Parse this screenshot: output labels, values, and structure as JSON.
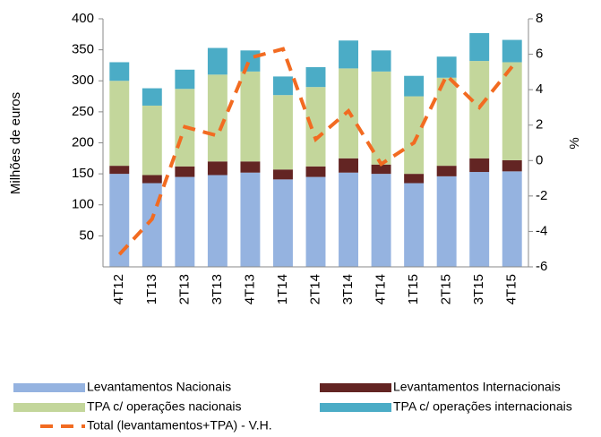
{
  "chart_data": {
    "type": "bar",
    "y_label": "Milhões de euros",
    "y2_label": "%",
    "categories": [
      "4T12",
      "1T13",
      "2T13",
      "3T13",
      "4T13",
      "1T14",
      "2T14",
      "3T14",
      "4T14",
      "1T15",
      "2T15",
      "3T15",
      "4T15"
    ],
    "stacked": true,
    "series": [
      {
        "name": "Levantamentos Nacionais",
        "color": "#95b3e0",
        "values": [
          150,
          135,
          145,
          148,
          152,
          141,
          145,
          152,
          150,
          135,
          146,
          153,
          154
        ]
      },
      {
        "name": "Levantamentos Internacionais",
        "color": "#632523",
        "values": [
          13,
          13,
          17,
          22,
          18,
          16,
          17,
          23,
          15,
          15,
          17,
          22,
          18
        ]
      },
      {
        "name": "TPA c/ operações nacionais",
        "color": "#c3d69b",
        "values": [
          137,
          112,
          125,
          140,
          145,
          120,
          128,
          145,
          150,
          125,
          142,
          157,
          158
        ]
      },
      {
        "name": "TPA c/ operações internacionais",
        "color": "#4bacc6",
        "values": [
          30,
          28,
          31,
          43,
          34,
          30,
          32,
          45,
          34,
          33,
          34,
          45,
          36
        ]
      },
      {
        "name": "Total (levantamentos+TPA) - V.H.",
        "color": "#f26b21",
        "type": "line",
        "axis": "y2",
        "values": [
          -5.3,
          -3.3,
          1.9,
          1.4,
          5.8,
          6.3,
          1.2,
          2.8,
          -0.2,
          1.0,
          4.8,
          3.0,
          5.3
        ]
      }
    ],
    "ylim": [
      0,
      400
    ],
    "yticks": [
      50,
      100,
      150,
      200,
      250,
      300,
      350,
      400
    ],
    "y2lim": [
      -6,
      8
    ],
    "y2ticks": [
      -6,
      -4,
      -2,
      0,
      2,
      4,
      6,
      8
    ]
  }
}
